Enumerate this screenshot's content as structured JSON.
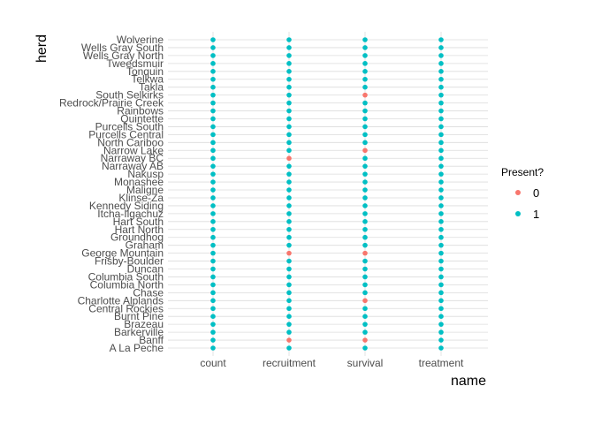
{
  "chart_data": {
    "type": "scatter",
    "xlabel": "name",
    "ylabel": "herd",
    "x_categories": [
      "count",
      "recruitment",
      "survival",
      "treatment"
    ],
    "y_categories": [
      "A La Peche",
      "Banff",
      "Barkerville",
      "Brazeau",
      "Burnt Pine",
      "Central Rockies",
      "Charlotte Alplands",
      "Chase",
      "Columbia North",
      "Columbia South",
      "Duncan",
      "Frisby-Boulder",
      "George Mountain",
      "Graham",
      "Groundhog",
      "Hart North",
      "Hart South",
      "Itcha-Ilgachuz",
      "Kennedy Siding",
      "Klinse-Za",
      "Maligne",
      "Monashee",
      "Nakusp",
      "Narraway AB",
      "Narraway BC",
      "Narrow Lake",
      "North Cariboo",
      "Purcells Central",
      "Purcells South",
      "Quintette",
      "Rainbows",
      "Redrock/Prairie Creek",
      "South Selkirks",
      "Takla",
      "Telkwa",
      "Tonquin",
      "Tweedsmuir",
      "Wells Gray North",
      "Wells Gray South",
      "Wolverine"
    ],
    "absent": [
      [
        "recruitment",
        "Banff"
      ],
      [
        "recruitment",
        "George Mountain"
      ],
      [
        "recruitment",
        "Narraway BC"
      ],
      [
        "survival",
        "Banff"
      ],
      [
        "survival",
        "Charlotte Alplands"
      ],
      [
        "survival",
        "George Mountain"
      ],
      [
        "survival",
        "Narrow Lake"
      ],
      [
        "survival",
        "South Selkirks"
      ]
    ],
    "legend": {
      "title": "Present?",
      "position": "right",
      "entries": [
        {
          "label": "0",
          "color": "#F8766D"
        },
        {
          "label": "1",
          "color": "#00BFC4"
        }
      ]
    },
    "grid": true
  }
}
